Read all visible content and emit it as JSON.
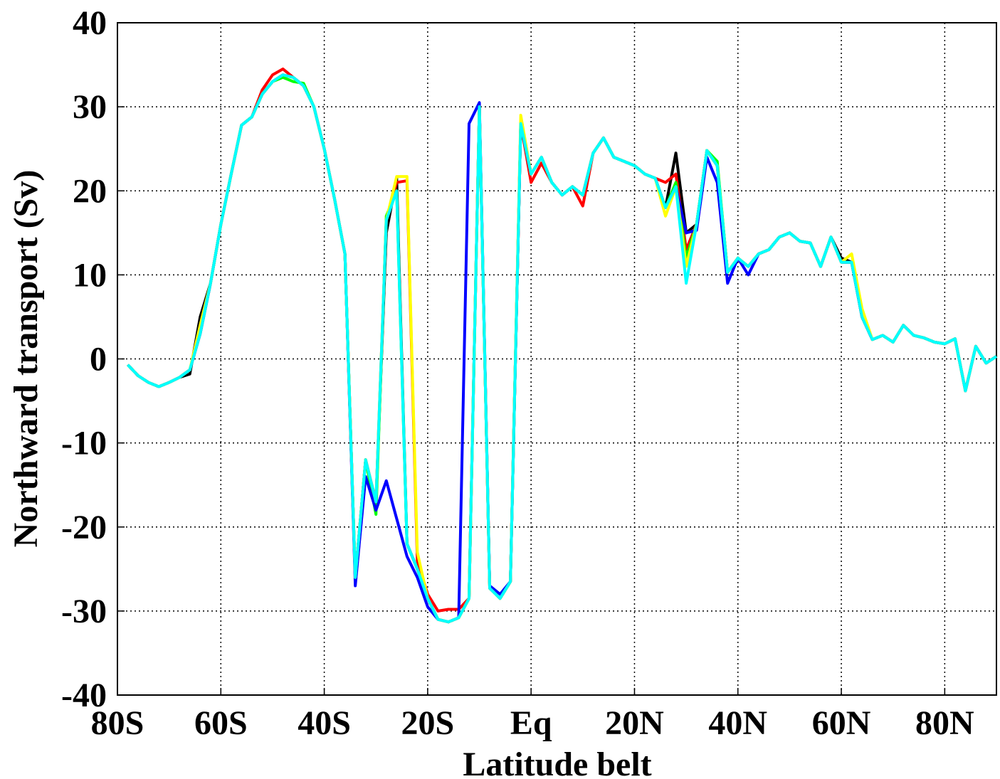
{
  "chart_data": {
    "type": "line",
    "xlabel": "Latitude belt",
    "ylabel": "Northward transport (Sv)",
    "x": [
      -78,
      -76,
      -74,
      -72,
      -70,
      -68,
      -66,
      -64,
      -62,
      -60,
      -58,
      -56,
      -54,
      -52,
      -50,
      -48,
      -46,
      -44,
      -42,
      -40,
      -38,
      -36,
      -34,
      -32,
      -30,
      -28,
      -26,
      -24,
      -22,
      -20,
      -18,
      -16,
      -14,
      -12,
      -10,
      -8,
      -6,
      -4,
      -2,
      0,
      2,
      4,
      6,
      8,
      10,
      12,
      14,
      16,
      18,
      20,
      22,
      24,
      26,
      28,
      30,
      32,
      34,
      36,
      38,
      40,
      42,
      44,
      46,
      48,
      50,
      52,
      54,
      56,
      58,
      60,
      62,
      64,
      66,
      68,
      70,
      72,
      74,
      76,
      78,
      80,
      82,
      84,
      86,
      88,
      90
    ],
    "series": [
      {
        "color": "#000000",
        "values": [
          -0.7,
          -2,
          -2.8,
          -3.3,
          -2.8,
          -2.2,
          -1.8,
          5,
          9,
          16,
          22,
          27.8,
          28.8,
          31.5,
          33,
          33.8,
          33.5,
          32.5,
          30,
          25,
          19,
          12.5,
          -26,
          -12,
          -17,
          15,
          21.5,
          -22,
          -25,
          -28.5,
          -31,
          -31.3,
          -30.8,
          -28.5,
          30,
          -27.3,
          -28.5,
          -26.5,
          28,
          22,
          24,
          21,
          19.5,
          20.5,
          19.5,
          24.5,
          26.3,
          24,
          23.5,
          23,
          22,
          21.5,
          18,
          24.5,
          15,
          16,
          24.8,
          23,
          10.3,
          12,
          11,
          12.5,
          13,
          14.5,
          15,
          14,
          13.8,
          11,
          14.5,
          12,
          11.5,
          5,
          2.3,
          2.8,
          2,
          4,
          2.8,
          2.5,
          2,
          1.8,
          2.4,
          -3.8,
          1.5,
          -0.5,
          0.3
        ]
      },
      {
        "color": "#ff0000",
        "values": [
          -0.7,
          -2,
          -2.8,
          -3.3,
          -2.8,
          -2.2,
          -1.3,
          3,
          9,
          16,
          22,
          27.8,
          28.8,
          32,
          33.8,
          34.5,
          33.5,
          32.5,
          30,
          25,
          19,
          12.5,
          -26,
          -12,
          -17,
          16.5,
          21,
          21.2,
          -24,
          -28,
          -30,
          -29.8,
          -29.8,
          -28.5,
          30,
          -27.3,
          -28.5,
          -26.5,
          28,
          21,
          23.3,
          21,
          19.5,
          20.5,
          18.2,
          24.5,
          26.3,
          24,
          23.5,
          23,
          22,
          21.5,
          21,
          22,
          13,
          16,
          24.8,
          23,
          10.3,
          12,
          11,
          12.5,
          13,
          14.5,
          15,
          14,
          13.8,
          11,
          14.5,
          11.5,
          11.5,
          5,
          2.3,
          2.8,
          2,
          4,
          2.8,
          2.5,
          2,
          1.8,
          2.4,
          -3.8,
          1.5,
          -0.5,
          0.3
        ]
      },
      {
        "color": "#00ff00",
        "values": [
          -0.7,
          -2,
          -2.8,
          -3.3,
          -2.8,
          -2.2,
          -1.3,
          3,
          9,
          16,
          22,
          27.8,
          28.8,
          31.5,
          33,
          33.5,
          33,
          32.8,
          30,
          25,
          19,
          12.5,
          -26,
          -12,
          -18.5,
          17,
          20,
          -22,
          -25,
          -28.5,
          -31,
          -31.3,
          -30.8,
          -28.5,
          30,
          -27.3,
          -28.5,
          -26.5,
          28,
          22,
          24,
          21,
          19.5,
          20.5,
          19.5,
          24.5,
          26.3,
          24,
          23.5,
          23,
          22,
          21.5,
          18,
          21,
          12,
          16,
          24.8,
          23.5,
          10.3,
          12,
          11,
          12.5,
          13,
          14.5,
          15,
          14,
          13.8,
          11,
          14.5,
          11.5,
          11.5,
          5,
          2.3,
          2.8,
          2,
          4,
          2.8,
          2.5,
          2,
          1.8,
          2.4,
          -3.8,
          1.5,
          -0.5,
          0.3
        ]
      },
      {
        "color": "#0000ff",
        "values": [
          -0.7,
          -2,
          -2.8,
          -3.3,
          -2.8,
          -2.2,
          -1.3,
          3,
          9,
          16,
          22,
          27.8,
          28.8,
          31.5,
          33,
          33.8,
          33.5,
          32.5,
          30,
          25,
          19,
          12.5,
          -27,
          -14,
          -18,
          -14.5,
          -19,
          -23.5,
          -26,
          -29.5,
          -31,
          -31.3,
          -30.8,
          28,
          30.5,
          -27,
          -28,
          -26.5,
          28,
          22,
          24,
          21,
          19.5,
          20.5,
          19.5,
          24.5,
          26.3,
          24,
          23.5,
          23,
          22,
          21.5,
          18,
          20.5,
          15,
          15.3,
          24,
          21,
          9,
          12,
          10,
          12.5,
          13,
          14.5,
          15,
          14,
          13.8,
          11,
          14.5,
          11.5,
          11.5,
          5,
          2.3,
          2.8,
          2,
          4,
          2.8,
          2.5,
          2,
          1.8,
          2.4,
          -3.8,
          1.5,
          -0.5,
          0.3
        ]
      },
      {
        "color": "#ffff00",
        "values": [
          -0.7,
          -2,
          -2.8,
          -3.3,
          -2.8,
          -2.2,
          -1.3,
          4,
          9,
          16,
          22,
          27.8,
          28.8,
          31.5,
          33,
          33.8,
          33.5,
          32.5,
          30,
          25,
          19,
          12.5,
          -26,
          -12,
          -17,
          16.5,
          21.7,
          21.7,
          -23,
          -28.5,
          -31,
          -31.3,
          -30.8,
          -28.5,
          30,
          -27.3,
          -28.5,
          -26.5,
          29,
          22,
          24,
          21,
          19.5,
          20.5,
          19.5,
          24.5,
          26.3,
          24,
          23.5,
          23,
          22,
          21.5,
          17,
          20.5,
          11,
          16,
          24.8,
          23,
          10.3,
          12,
          11,
          12.5,
          13,
          14.5,
          15,
          14,
          13.8,
          11,
          14.5,
          11.5,
          12.5,
          6,
          2.3,
          2.8,
          2,
          4,
          2.8,
          2.5,
          2,
          1.8,
          2.4,
          -3.8,
          1.5,
          -0.5,
          0.3
        ]
      },
      {
        "color": "#00ffff",
        "values": [
          -0.7,
          -2,
          -2.8,
          -3.3,
          -2.8,
          -2.2,
          -1.3,
          3,
          9,
          16,
          22,
          27.8,
          28.8,
          31.5,
          33,
          33.8,
          33.5,
          32.5,
          30,
          25,
          19,
          12.5,
          -26,
          -12,
          -17,
          16.5,
          20,
          -22,
          -25,
          -28.5,
          -31,
          -31.3,
          -30.8,
          -28.5,
          30,
          -27.3,
          -28.5,
          -26.5,
          28,
          22,
          24,
          21,
          19.5,
          20.5,
          19.5,
          24.5,
          26.3,
          24,
          23.5,
          23,
          22,
          21.5,
          18,
          20.5,
          9,
          16,
          24.8,
          23,
          10.3,
          12,
          11,
          12.5,
          13,
          14.5,
          15,
          14,
          13.8,
          11,
          14.5,
          11.5,
          11.5,
          5,
          2.3,
          2.8,
          2,
          4,
          2.8,
          2.5,
          2,
          1.8,
          2.4,
          -3.8,
          1.5,
          -0.5,
          0.3
        ]
      }
    ],
    "xlim": [
      -80,
      90
    ],
    "xticks": [
      {
        "value": -80,
        "label": "80S"
      },
      {
        "value": -60,
        "label": "60S"
      },
      {
        "value": -40,
        "label": "40S"
      },
      {
        "value": -20,
        "label": "20S"
      },
      {
        "value": 0,
        "label": "Eq"
      },
      {
        "value": 20,
        "label": "20N"
      },
      {
        "value": 40,
        "label": "40N"
      },
      {
        "value": 60,
        "label": "60N"
      },
      {
        "value": 80,
        "label": "80N"
      }
    ],
    "ylim": [
      -40,
      40
    ],
    "yticks": [
      -40,
      -30,
      -20,
      -10,
      0,
      10,
      20,
      30,
      40
    ],
    "grid": true
  }
}
